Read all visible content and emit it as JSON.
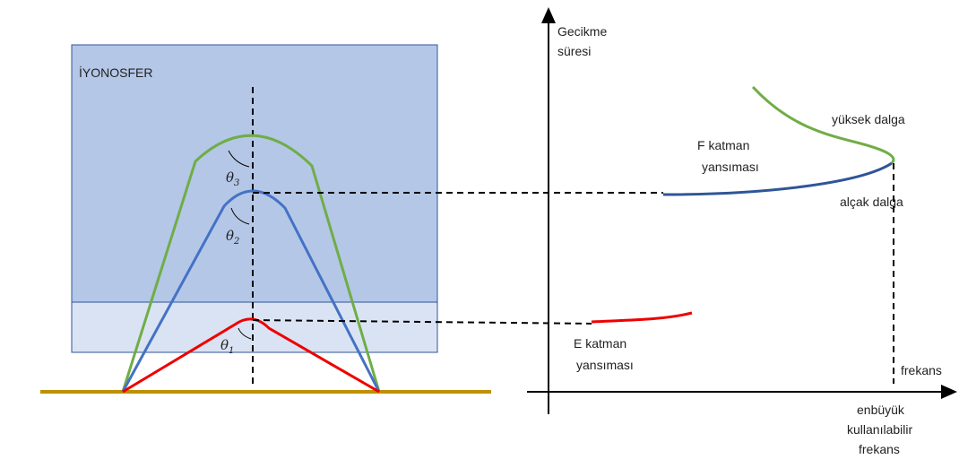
{
  "ionosphere_label": "İYONOSFER",
  "angles": [
    {
      "symbol": "θ",
      "index": "3"
    },
    {
      "symbol": "θ",
      "index": "2"
    },
    {
      "symbol": "θ",
      "index": "1"
    }
  ],
  "y_axis_label": [
    "Gecikme",
    "süresi"
  ],
  "x_axis_label": "frekans",
  "f_layer_label": [
    "F katman",
    "yansıması"
  ],
  "high_wave_label": "yüksek dalga",
  "low_wave_label": "alçak dalga",
  "e_layer_label": [
    "E katman",
    "yansıması"
  ],
  "muf_label": [
    "enbüyük",
    "kullanılabilir",
    "frekans"
  ]
}
